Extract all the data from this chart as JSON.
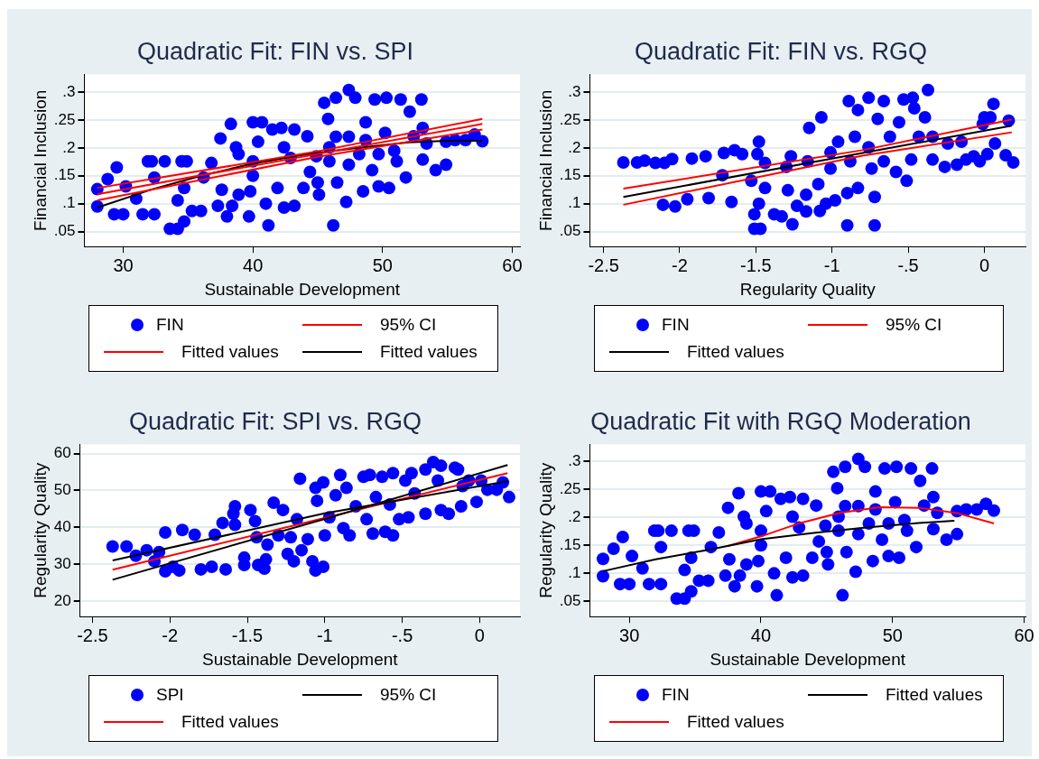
{
  "chart_data": [
    {
      "type": "scatter",
      "title": "Quadratic Fit: FIN vs. SPI",
      "xlabel": "Sustainable Development",
      "ylabel": "Financial Inclusion",
      "xlim": [
        27,
        60.6
      ],
      "xticks": [
        30,
        40,
        50,
        60
      ],
      "ylim": [
        0.023,
        0.332
      ],
      "yticks": [
        {
          "value": 0.05,
          "label": ".05"
        },
        {
          "value": 0.1,
          "label": ".1"
        },
        {
          "value": 0.15,
          "label": ".15"
        },
        {
          "value": 0.2,
          "label": ".2"
        },
        {
          "value": 0.25,
          "label": ".25"
        },
        {
          "value": 0.3,
          "label": ".3"
        }
      ],
      "grid": "y",
      "legend": "bottom",
      "series": [
        {
          "name": "FIN",
          "type": "scatter",
          "marker": "circle",
          "color": "#0000ff",
          "x": [
            28.0,
            28.0,
            29.5,
            28.8,
            29.3,
            30,
            30.2,
            31,
            31.5,
            32.4,
            31.9,
            32.2,
            32.4,
            33.2,
            34.5,
            34.9,
            33.6,
            34.2,
            34.7,
            34.2,
            34.7,
            35.3,
            36,
            36.2,
            36.8,
            37.5,
            37.6,
            37.3,
            38,
            38.3,
            38.4,
            38.9,
            38.9,
            39.7,
            40,
            39.8,
            40,
            40.7,
            41,
            41.2,
            40.4,
            41.5,
            41.9,
            42.4,
            43.2,
            42.2,
            42.9,
            43.2,
            43.9,
            44.4,
            44.2,
            44.9,
            45,
            45.1,
            45.5,
            45.8,
            45.9,
            46.2,
            46.5,
            46.4,
            47.2,
            47.4,
            47.4,
            47.9,
            48.2,
            48.5,
            48.7,
            49.2,
            49.4,
            49.7,
            49.7,
            50.3,
            50.2,
            50.5,
            51.4,
            51.1,
            51.8,
            52.1,
            52.4,
            53,
            53.1,
            53.1,
            54.1,
            54.9,
            54.9,
            55.6,
            56.4,
            57.1,
            57.7,
            53.4,
            47.4,
            50.9,
            46.4,
            45.9,
            48.7,
            42.4,
            40,
            38.7
          ],
          "values": [
            0.126,
            0.095,
            0.165,
            0.144,
            0.081,
            0.081,
            0.131,
            0.109,
            0.081,
            0.081,
            0.176,
            0.176,
            0.147,
            0.176,
            0.176,
            0.176,
            0.055,
            0.055,
            0.068,
            0.106,
            0.128,
            0.087,
            0.087,
            0.147,
            0.173,
            0.217,
            0.125,
            0.096,
            0.077,
            0.243,
            0.096,
            0.116,
            0.189,
            0.077,
            0.246,
            0.122,
            0.15,
            0.246,
            0.1,
            0.061,
            0.211,
            0.233,
            0.128,
            0.093,
            0.096,
            0.236,
            0.182,
            0.233,
            0.128,
            0.157,
            0.221,
            0.185,
            0.138,
            0.116,
            0.281,
            0.252,
            0.201,
            0.061,
            0.138,
            0.29,
            0.103,
            0.304,
            0.22,
            0.29,
            0.189,
            0.122,
            0.246,
            0.16,
            0.287,
            0.131,
            0.189,
            0.29,
            0.227,
            0.128,
            0.287,
            0.176,
            0.147,
            0.265,
            0.221,
            0.287,
            0.179,
            0.236,
            0.16,
            0.17,
            0.211,
            0.214,
            0.214,
            0.224,
            0.212,
            0.208,
            0.17,
            0.195,
            0.22,
            0.176,
            0.214,
            0.201,
            0.176,
            0.201
          ]
        },
        {
          "name": "95% CI",
          "type": "line",
          "color": "#ff0000",
          "x": [
            28,
            45,
            57.7
          ],
          "values": [
            0.128,
            0.194,
            0.252
          ]
        },
        {
          "type": "line",
          "color": "#ff0000",
          "x": [
            28,
            45,
            57.7
          ],
          "values": [
            0.106,
            0.184,
            0.233
          ]
        },
        {
          "name": "Fitted values",
          "type": "line",
          "color": "#ff0000",
          "x": [
            28,
            57.7
          ],
          "values": [
            0.117,
            0.243
          ]
        },
        {
          "name": "Fitted values",
          "type": "line",
          "color": "#000000",
          "x": [
            28,
            32,
            36,
            40,
            44,
            48,
            52,
            55,
            57.7
          ],
          "values": [
            0.093,
            0.124,
            0.15,
            0.172,
            0.188,
            0.2,
            0.21,
            0.213,
            0.213
          ]
        }
      ]
    },
    {
      "type": "scatter",
      "title": "Quadratic Fit: FIN vs. RGQ",
      "xlabel": "Regularity Quality",
      "ylabel": "Financial Inclusion",
      "xlim": [
        -2.59,
        0.27
      ],
      "xticks": [
        -2.5,
        -2,
        -1.5,
        -1,
        {
          "value": -0.5,
          "label": "-.5"
        },
        0
      ],
      "ylim": [
        0.023,
        0.332
      ],
      "yticks": [
        {
          "value": 0.05,
          "label": ".05"
        },
        {
          "value": 0.1,
          "label": ".1"
        },
        {
          "value": 0.15,
          "label": ".15"
        },
        {
          "value": 0.2,
          "label": ".2"
        },
        {
          "value": 0.25,
          "label": ".25"
        },
        {
          "value": 0.3,
          "label": ".3"
        }
      ],
      "grid": "y",
      "legend": "bottom",
      "series": [
        {
          "name": "FIN",
          "type": "scatter",
          "marker": "circle",
          "color": "#0000ff",
          "x": [
            -2.37,
            -2.28,
            -2.23,
            -2.16,
            -2.1,
            -2.05,
            -2.11,
            -2.03,
            -1.95,
            -1.92,
            -1.83,
            -1.81,
            -1.72,
            -1.71,
            -1.66,
            -1.64,
            -1.59,
            -1.53,
            -1.48,
            -1.49,
            -1.51,
            -1.47,
            -1.51,
            -1.48,
            -1.44,
            -1.44,
            -1.38,
            -1.33,
            -1.3,
            -1.27,
            -1.29,
            -1.26,
            -1.23,
            -1.17,
            -1.17,
            -1.16,
            -1.15,
            -1.09,
            -1.08,
            -1.07,
            -1.04,
            -1.01,
            -0.98,
            -1.01,
            -0.96,
            -0.89,
            -0.9,
            -0.9,
            -0.88,
            -0.83,
            -0.85,
            -0.83,
            -0.76,
            -0.76,
            -0.74,
            -0.72,
            -0.72,
            -0.7,
            -0.66,
            -0.66,
            -0.62,
            -0.58,
            -0.56,
            -0.53,
            -0.51,
            -0.47,
            -0.46,
            -0.48,
            -0.43,
            -0.39,
            -0.37,
            -0.34,
            -0.34,
            -0.26,
            -0.24,
            -0.18,
            -0.15,
            -0.12,
            -0.07,
            -0.03,
            -0.01,
            0.02,
            0,
            0.04,
            0.06,
            0.07,
            0.14,
            0.16,
            0.19
          ],
          "values": [
            0.174,
            0.174,
            0.177,
            0.173,
            0.173,
            0.18,
            0.098,
            0.095,
            0.108,
            0.181,
            0.185,
            0.11,
            0.151,
            0.191,
            0.103,
            0.196,
            0.189,
            0.141,
            0.211,
            0.189,
            0.055,
            0.055,
            0.081,
            0.1,
            0.173,
            0.128,
            0.081,
            0.077,
            0.166,
            0.185,
            0.124,
            0.063,
            0.096,
            0.116,
            0.086,
            0.176,
            0.236,
            0.135,
            0.087,
            0.255,
            0.1,
            0.192,
            0.106,
            0.163,
            0.211,
            0.284,
            0.061,
            0.119,
            0.176,
            0.268,
            0.22,
            0.128,
            0.29,
            0.201,
            0.163,
            0.112,
            0.061,
            0.252,
            0.284,
            0.176,
            0.22,
            0.157,
            0.246,
            0.287,
            0.141,
            0.29,
            0.271,
            0.179,
            0.22,
            0.255,
            0.304,
            0.179,
            0.22,
            0.166,
            0.208,
            0.17,
            0.211,
            0.179,
            0.185,
            0.176,
            0.243,
            0.189,
            0.255,
            0.255,
            0.279,
            0.208,
            0.187,
            0.249,
            0.174
          ]
        },
        {
          "name": "95% CI",
          "type": "line",
          "color": "#ff0000",
          "x": [
            -2.37,
            -0.8,
            0.18
          ],
          "values": [
            0.127,
            0.196,
            0.251
          ]
        },
        {
          "type": "line",
          "color": "#ff0000",
          "x": [
            -2.37,
            -0.8,
            0.18
          ],
          "values": [
            0.098,
            0.186,
            0.228
          ]
        },
        {
          "name": "Fitted values",
          "type": "line",
          "color": "#000000",
          "x": [
            -2.37,
            0.18
          ],
          "values": [
            0.112,
            0.24
          ]
        }
      ]
    },
    {
      "type": "scatter",
      "title": "Quadratic Fit: SPI vs. RGQ",
      "xlabel": "Sustainable Development",
      "ylabel": "Regularity Quality",
      "xlim": [
        -2.58,
        0.26
      ],
      "xticks": [
        -2.5,
        -2,
        -1.5,
        -1,
        {
          "value": -0.5,
          "label": "-.5"
        },
        0
      ],
      "ylim": [
        15.8,
        62.5
      ],
      "yticks": [
        20,
        30,
        40,
        50,
        60
      ],
      "grid": "y",
      "legend": "bottom",
      "series": [
        {
          "name": "SPI",
          "type": "scatter",
          "marker": "circle",
          "color": "#0000ff",
          "x": [
            -2.37,
            -2.28,
            -2.22,
            -2.15,
            -2.1,
            -2.07,
            -2.03,
            -2.03,
            -1.98,
            -1.94,
            -1.92,
            -1.84,
            -1.8,
            -1.73,
            -1.71,
            -1.66,
            -1.64,
            -1.58,
            -1.59,
            -1.58,
            -1.52,
            -1.52,
            -1.48,
            -1.45,
            -1.44,
            -1.43,
            -1.39,
            -1.38,
            -1.37,
            -1.33,
            -1.27,
            -1.3,
            -1.24,
            -1.22,
            -1.2,
            -1.18,
            -1.16,
            -1.15,
            -1.11,
            -1.08,
            -1.06,
            -1.01,
            -1.05,
            -1.06,
            -1.01,
            -1,
            -0.97,
            -0.93,
            -0.9,
            -0.88,
            -0.86,
            -0.84,
            -0.8,
            -0.75,
            -0.73,
            -0.71,
            -0.69,
            -0.67,
            -0.63,
            -0.61,
            -0.58,
            -0.56,
            -0.56,
            -0.52,
            -0.48,
            -0.46,
            -0.44,
            -0.42,
            -0.35,
            -0.35,
            -0.3,
            -0.27,
            -0.25,
            -0.25,
            -0.2,
            -0.16,
            -0.14,
            -0.12,
            -0.11,
            -0.07,
            -0.02,
            0.01,
            0.05,
            0.11,
            0.15,
            0.19
          ],
          "values": [
            34.8,
            34.8,
            32.3,
            33.8,
            30.8,
            33.3,
            38.6,
            28.1,
            29.3,
            28.3,
            39.3,
            38,
            28.6,
            29.3,
            38,
            41.2,
            28.6,
            45.7,
            43.7,
            40.7,
            31.8,
            29.8,
            44.7,
            41.7,
            37.3,
            29.8,
            28.8,
            31.3,
            35.3,
            46.7,
            44.7,
            37.8,
            32.8,
            37.3,
            30.8,
            42.2,
            53.2,
            33.8,
            36.8,
            30.8,
            28.3,
            29.3,
            47.2,
            50.7,
            52.2,
            37.8,
            42.7,
            48.7,
            54.2,
            39.8,
            50.7,
            37.8,
            45.7,
            53.7,
            42.2,
            54.2,
            38.3,
            48.2,
            53.7,
            38.8,
            46.2,
            54.7,
            37.8,
            42.2,
            52.7,
            42.7,
            54.7,
            49.2,
            43.7,
            55.7,
            57.7,
            52.7,
            44.7,
            56.7,
            43.7,
            56.2,
            55.7,
            45.7,
            51.2,
            52.7,
            46.9,
            52.7,
            50.2,
            50.2,
            52.2,
            48.2
          ]
        },
        {
          "name": "95% CI",
          "type": "line",
          "color": "#000000",
          "x": [
            -2.37,
            -1,
            0.18
          ],
          "values": [
            31.0,
            43.8,
            52.5
          ]
        },
        {
          "type": "line",
          "color": "#000000",
          "x": [
            -2.37,
            -1,
            0.18
          ],
          "values": [
            25.8,
            42.3,
            56.9
          ]
        },
        {
          "name": "Fitted values",
          "type": "line",
          "color": "#ff0000",
          "x": [
            -2.37,
            0.18
          ],
          "values": [
            28.5,
            54.7
          ]
        }
      ]
    },
    {
      "type": "scatter",
      "title": "Quadratic Fit with RGQ Moderation",
      "xlabel": "Sustainable Development",
      "ylabel": "Regularity Quality",
      "xlim": [
        27,
        60.1
      ],
      "xticks": [
        30,
        40,
        50,
        60
      ],
      "ylim": [
        0.023,
        0.33
      ],
      "yticks": [
        {
          "value": 0.05,
          "label": ".05"
        },
        {
          "value": 0.1,
          "label": ".1"
        },
        {
          "value": 0.15,
          "label": ".15"
        },
        {
          "value": 0.2,
          "label": ".2"
        },
        {
          "value": 0.25,
          "label": ".25"
        },
        {
          "value": 0.3,
          "label": ".3"
        }
      ],
      "grid": "y",
      "legend": "bottom",
      "series": [
        {
          "name": "FIN",
          "type": "scatter",
          "marker": "circle",
          "color": "#0000ff",
          "x": [
            28.0,
            28.0,
            29.5,
            28.8,
            29.3,
            30,
            30.2,
            31,
            31.5,
            32.4,
            31.9,
            32.2,
            32.4,
            33.2,
            34.5,
            34.9,
            33.6,
            34.2,
            34.7,
            34.2,
            34.7,
            35.3,
            36,
            36.2,
            36.8,
            37.5,
            37.6,
            37.3,
            38,
            38.3,
            38.4,
            38.9,
            38.9,
            39.7,
            40,
            39.8,
            40,
            40.7,
            41,
            41.2,
            40.4,
            41.5,
            41.9,
            42.4,
            43.2,
            42.2,
            42.9,
            43.2,
            43.9,
            44.4,
            44.2,
            44.9,
            45,
            45.1,
            45.5,
            45.8,
            45.9,
            46.2,
            46.5,
            46.4,
            47.2,
            47.4,
            47.4,
            47.9,
            48.2,
            48.5,
            48.7,
            49.2,
            49.4,
            49.7,
            49.7,
            50.3,
            50.2,
            50.5,
            51.4,
            51.1,
            51.8,
            52.1,
            52.4,
            53,
            53.1,
            53.1,
            54.1,
            54.9,
            54.9,
            55.6,
            56.4,
            57.1,
            57.7,
            53.4,
            47.4,
            50.9,
            46.4,
            45.9,
            48.7,
            42.4,
            40,
            38.7
          ],
          "values": [
            0.126,
            0.095,
            0.165,
            0.144,
            0.081,
            0.081,
            0.131,
            0.109,
            0.081,
            0.081,
            0.176,
            0.176,
            0.147,
            0.176,
            0.176,
            0.176,
            0.055,
            0.055,
            0.068,
            0.106,
            0.128,
            0.087,
            0.087,
            0.147,
            0.173,
            0.217,
            0.125,
            0.096,
            0.077,
            0.243,
            0.096,
            0.116,
            0.189,
            0.077,
            0.246,
            0.122,
            0.15,
            0.246,
            0.1,
            0.061,
            0.211,
            0.233,
            0.128,
            0.093,
            0.096,
            0.236,
            0.182,
            0.233,
            0.128,
            0.157,
            0.221,
            0.185,
            0.138,
            0.116,
            0.281,
            0.252,
            0.201,
            0.061,
            0.138,
            0.29,
            0.103,
            0.304,
            0.22,
            0.29,
            0.189,
            0.122,
            0.246,
            0.16,
            0.287,
            0.131,
            0.189,
            0.29,
            0.227,
            0.128,
            0.287,
            0.176,
            0.147,
            0.265,
            0.221,
            0.287,
            0.179,
            0.236,
            0.16,
            0.17,
            0.211,
            0.214,
            0.214,
            0.224,
            0.212,
            0.208,
            0.17,
            0.195,
            0.22,
            0.176,
            0.214,
            0.201,
            0.176,
            0.201
          ]
        },
        {
          "name": "Fitted values",
          "type": "line",
          "color": "#000000",
          "x": [
            28,
            32,
            36,
            40,
            44,
            48,
            52,
            54.7
          ],
          "values": [
            0.104,
            0.125,
            0.142,
            0.161,
            0.172,
            0.182,
            0.19,
            0.194
          ]
        },
        {
          "name": "Fitted values",
          "type": "line",
          "color": "#ff0000",
          "x": [
            37.5,
            40,
            43,
            46,
            49,
            52,
            55,
            57.7
          ],
          "values": [
            0.149,
            0.166,
            0.19,
            0.208,
            0.218,
            0.217,
            0.207,
            0.189
          ]
        }
      ]
    }
  ]
}
